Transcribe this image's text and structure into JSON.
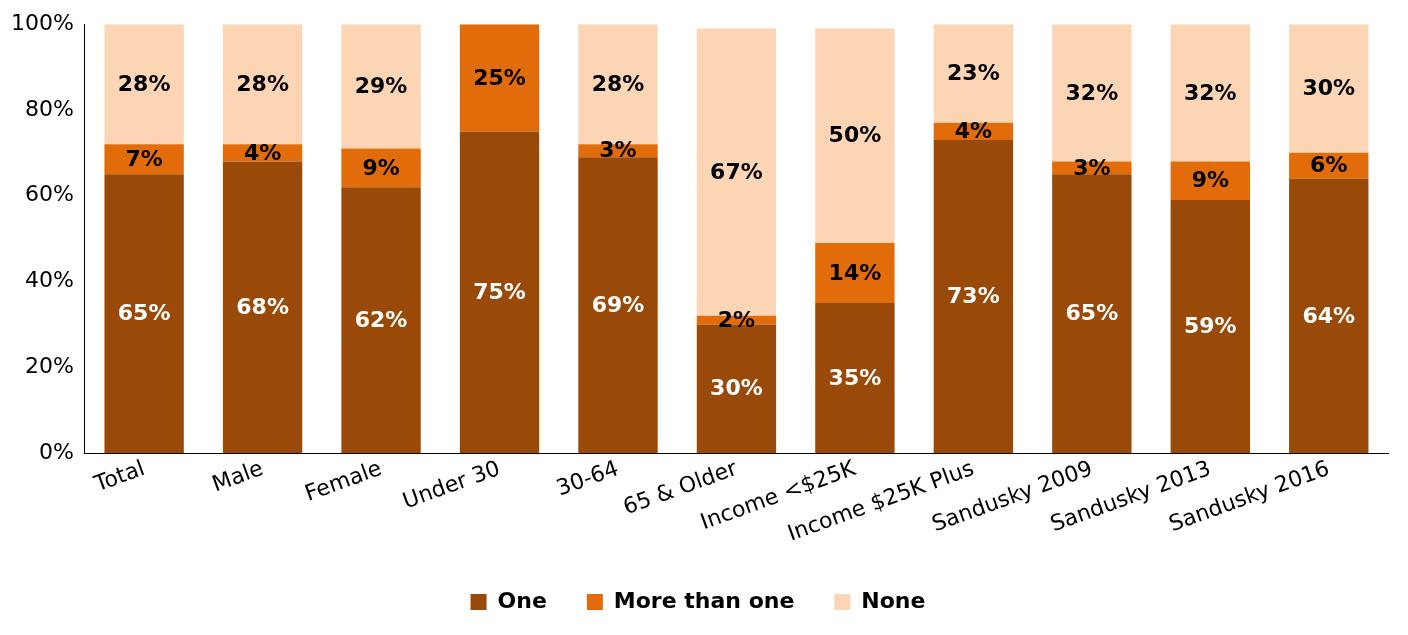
{
  "chart_data": {
    "type": "bar",
    "stacked": true,
    "categories": [
      "Total",
      "Male",
      "Female",
      "Under 30",
      "30-64",
      "65 & Older",
      "Income <$25K",
      "Income $25K Plus",
      "Sandusky 2009",
      "Sandusky 2013",
      "Sandusky 2016"
    ],
    "series": [
      {
        "name": "One",
        "color": "#9a4a08",
        "values": [
          65,
          68,
          62,
          75,
          69,
          30,
          35,
          73,
          65,
          59,
          64
        ],
        "value_labels": [
          "65%",
          "68%",
          "62%",
          "75%",
          "69%",
          "30%",
          "35%",
          "73%",
          "65%",
          "59%",
          "64%"
        ]
      },
      {
        "name": "More than one",
        "color": "#e36c0a",
        "values": [
          7,
          4,
          9,
          25,
          3,
          2,
          14,
          4,
          3,
          9,
          6
        ],
        "value_labels": [
          "7%",
          "4%",
          "9%",
          "25%",
          "3%",
          "2%",
          "14%",
          "4%",
          "3%",
          "9%",
          "6%"
        ]
      },
      {
        "name": "None",
        "color": "#fcd5b5",
        "values": [
          28,
          28,
          29,
          0,
          28,
          67,
          50,
          23,
          32,
          32,
          30
        ],
        "value_labels": [
          "28%",
          "28%",
          "29%",
          null,
          "28%",
          "67%",
          "50%",
          "23%",
          "32%",
          "32%",
          "30%"
        ]
      }
    ],
    "ylim": [
      0,
      100
    ],
    "yticks": [
      {
        "value": 0,
        "label": "0%"
      },
      {
        "value": 20,
        "label": "20%"
      },
      {
        "value": 40,
        "label": "40%"
      },
      {
        "value": 60,
        "label": "60%"
      },
      {
        "value": 80,
        "label": "80%"
      },
      {
        "value": 100,
        "label": "100%"
      }
    ],
    "grid": false,
    "legend": "bottom"
  }
}
